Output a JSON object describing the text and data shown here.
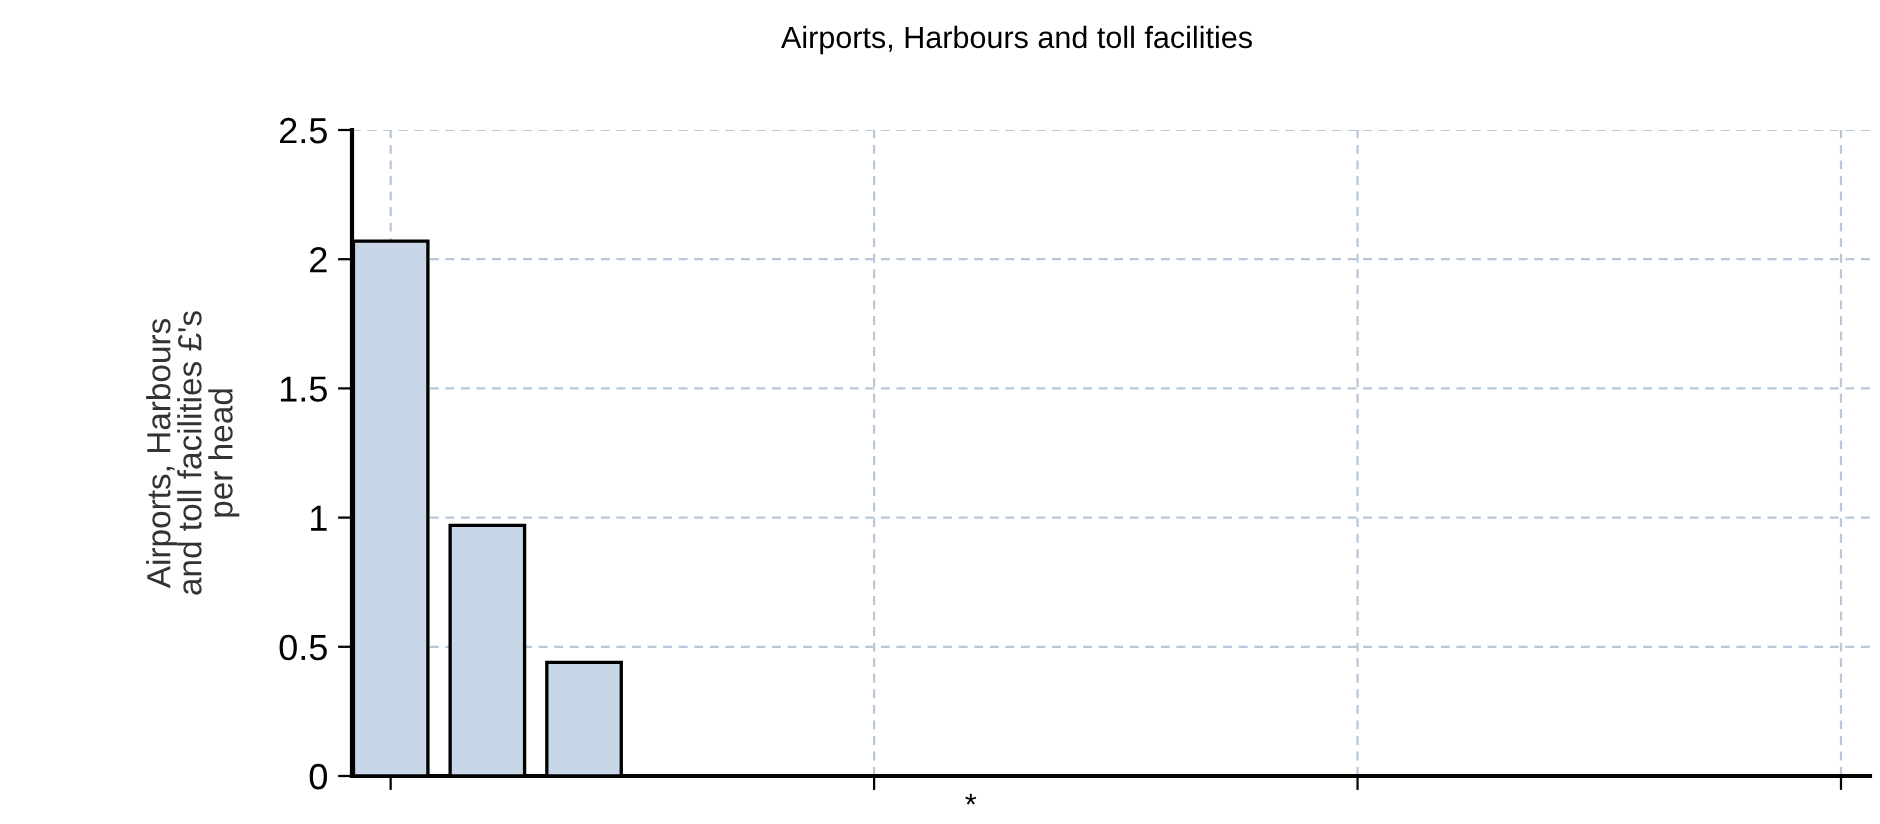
{
  "chart_data": {
    "type": "bar",
    "title": "Airports, Harbours and toll facilities",
    "ylabel": "Airports, Harbours\nand toll facilities £'s\nper head",
    "categories": [
      null,
      null,
      null,
      null,
      null,
      null,
      "*",
      null,
      null,
      null,
      null,
      null,
      null,
      null,
      null,
      null
    ],
    "values": [
      2.07,
      0.97,
      0.44,
      null,
      null,
      null,
      null,
      null,
      null,
      null,
      null,
      null,
      null,
      null,
      null,
      null
    ],
    "color": "#c8d7e8",
    "ylim": [
      0,
      2.5
    ],
    "yticks": [
      0,
      0.5,
      1,
      1.5,
      2,
      2.5
    ],
    "grid": true
  }
}
